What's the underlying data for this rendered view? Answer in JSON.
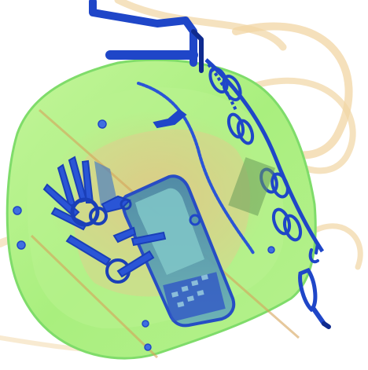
{
  "image": {
    "subject": "x-ray-baggage-scan",
    "colors": {
      "background": "#ffffff",
      "bag_body": "#a9ef7e",
      "bag_edge": "#7fdc6a",
      "organic_tan": "#efcf98",
      "organic_pink": "#f6b389",
      "metal_blue": "#1f46c8",
      "metal_dark": "#0f2a8e",
      "phone_fill": "#5b9ab1",
      "phone_screen": "#7ec4c7",
      "board_blue": "#3157c5"
    }
  }
}
